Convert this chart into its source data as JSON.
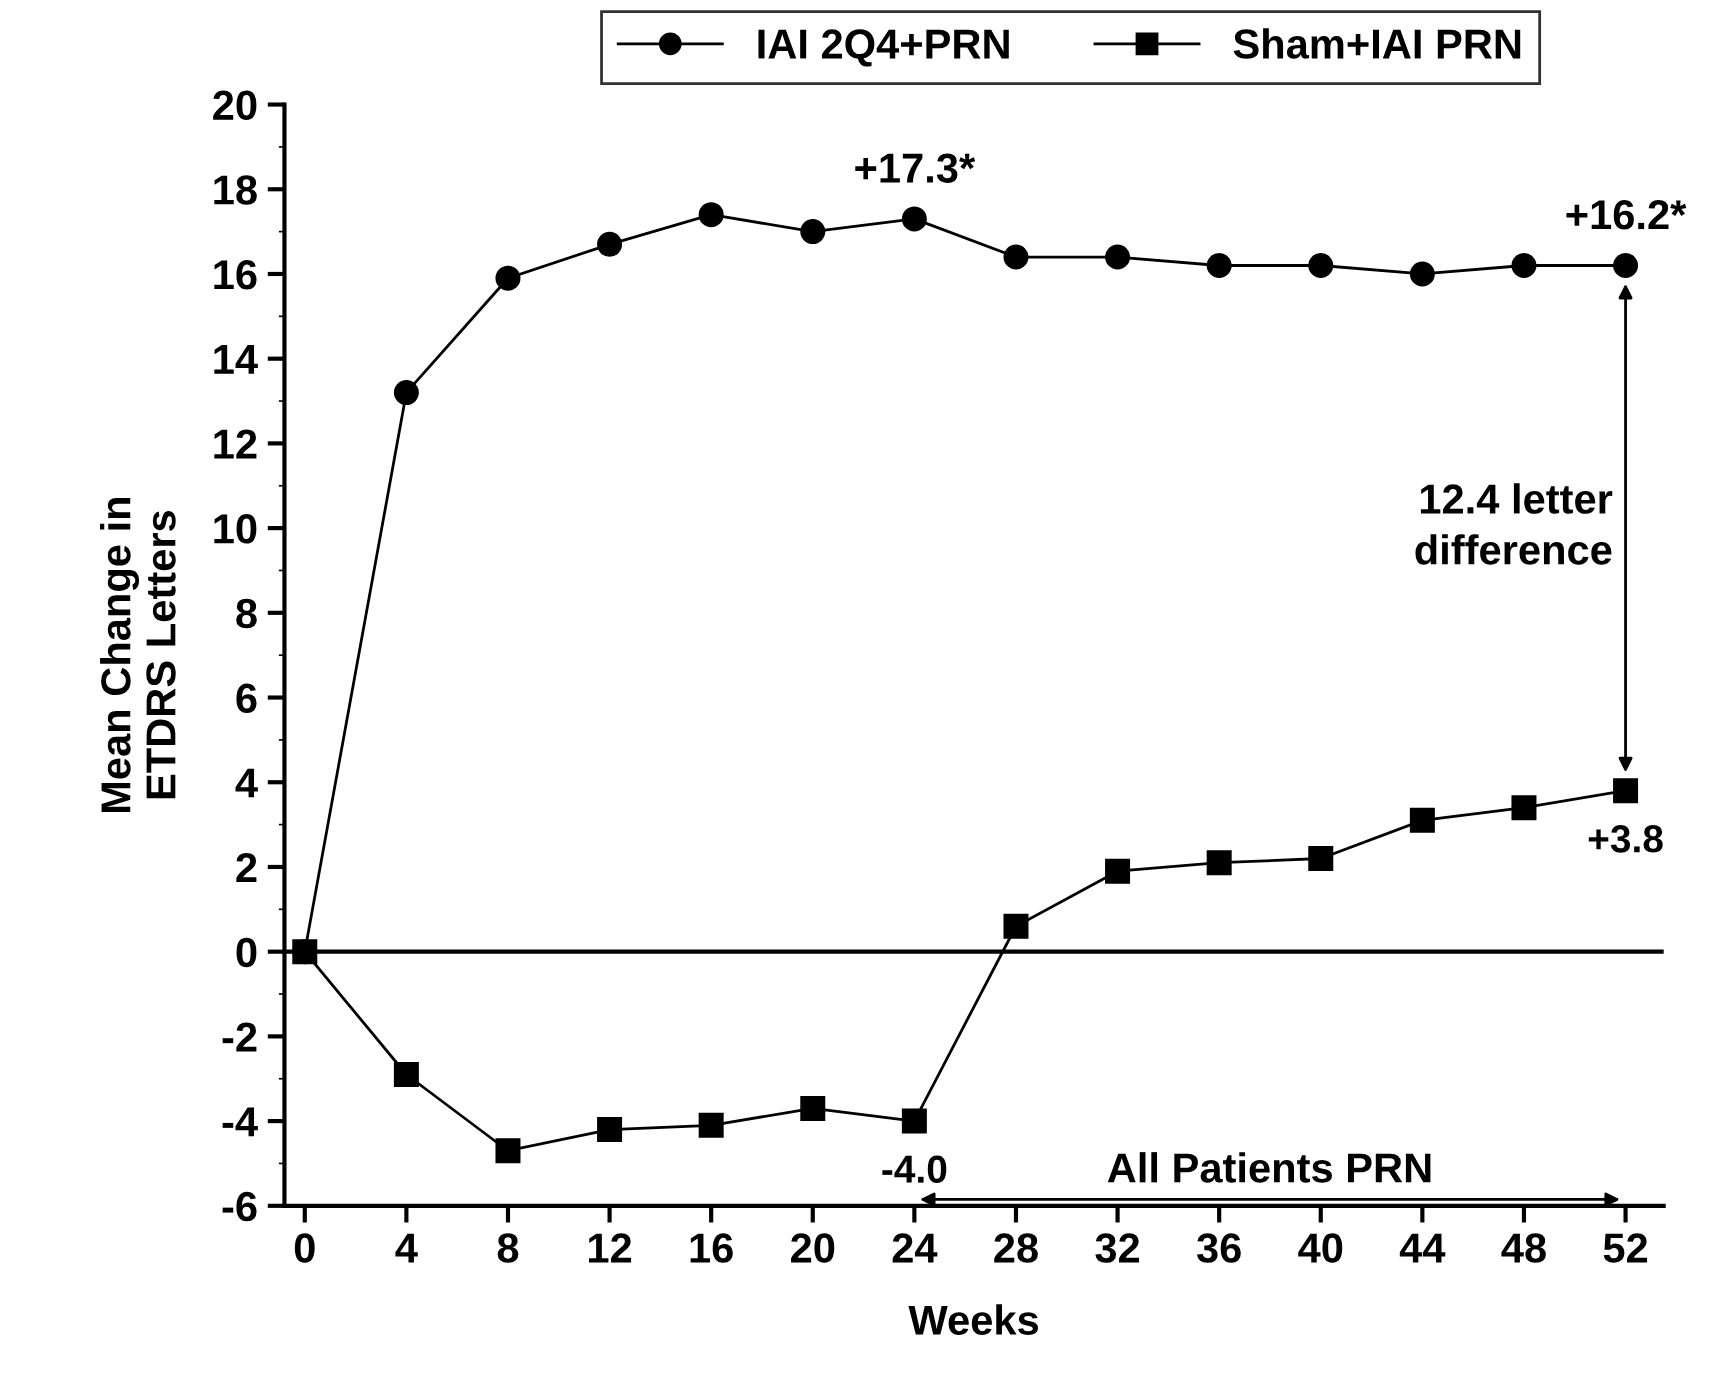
{
  "chart_data": {
    "type": "line",
    "xlabel": "Weeks",
    "ylabel": "Mean Change in\nETDRS Letters",
    "x": [
      0,
      4,
      8,
      12,
      16,
      20,
      24,
      28,
      32,
      36,
      40,
      44,
      48,
      52
    ],
    "series": [
      {
        "name": "IAI 2Q4+PRN",
        "color": "#000000",
        "marker": "circle",
        "values": [
          0,
          13.2,
          15.9,
          16.7,
          17.4,
          17.0,
          17.3,
          16.4,
          16.4,
          16.2,
          16.2,
          16.0,
          16.2,
          16.2
        ],
        "value_labels": [
          null,
          null,
          null,
          null,
          null,
          null,
          "+17.3*",
          null,
          null,
          null,
          null,
          null,
          null,
          "+16.2*"
        ]
      },
      {
        "name": "Sham+IAI PRN",
        "color": "#000000",
        "marker": "square",
        "values": [
          0,
          -2.9,
          -4.7,
          -4.2,
          -4.1,
          -3.7,
          -4.0,
          0.6,
          1.9,
          2.1,
          2.2,
          3.1,
          3.4,
          3.8
        ],
        "value_labels": [
          null,
          null,
          null,
          null,
          null,
          null,
          "-4.0",
          null,
          null,
          null,
          null,
          null,
          null,
          "+3.8"
        ]
      }
    ],
    "xlim": [
      -0.8,
      53.5
    ],
    "xticks": [
      0,
      4,
      8,
      12,
      16,
      20,
      24,
      28,
      32,
      36,
      40,
      44,
      48,
      52
    ],
    "ylim": [
      -6,
      20
    ],
    "yticks": [
      -6,
      -4,
      -2,
      0,
      2,
      4,
      6,
      8,
      10,
      12,
      14,
      16,
      18,
      20
    ],
    "ref_lines": [
      {
        "axis": "y",
        "value": 0,
        "color": "#000000"
      }
    ],
    "annotations": [
      "12.4 letter\ndifference",
      "All Patients PRN"
    ],
    "grid": false,
    "legend": "top",
    "line_style": "solid"
  }
}
